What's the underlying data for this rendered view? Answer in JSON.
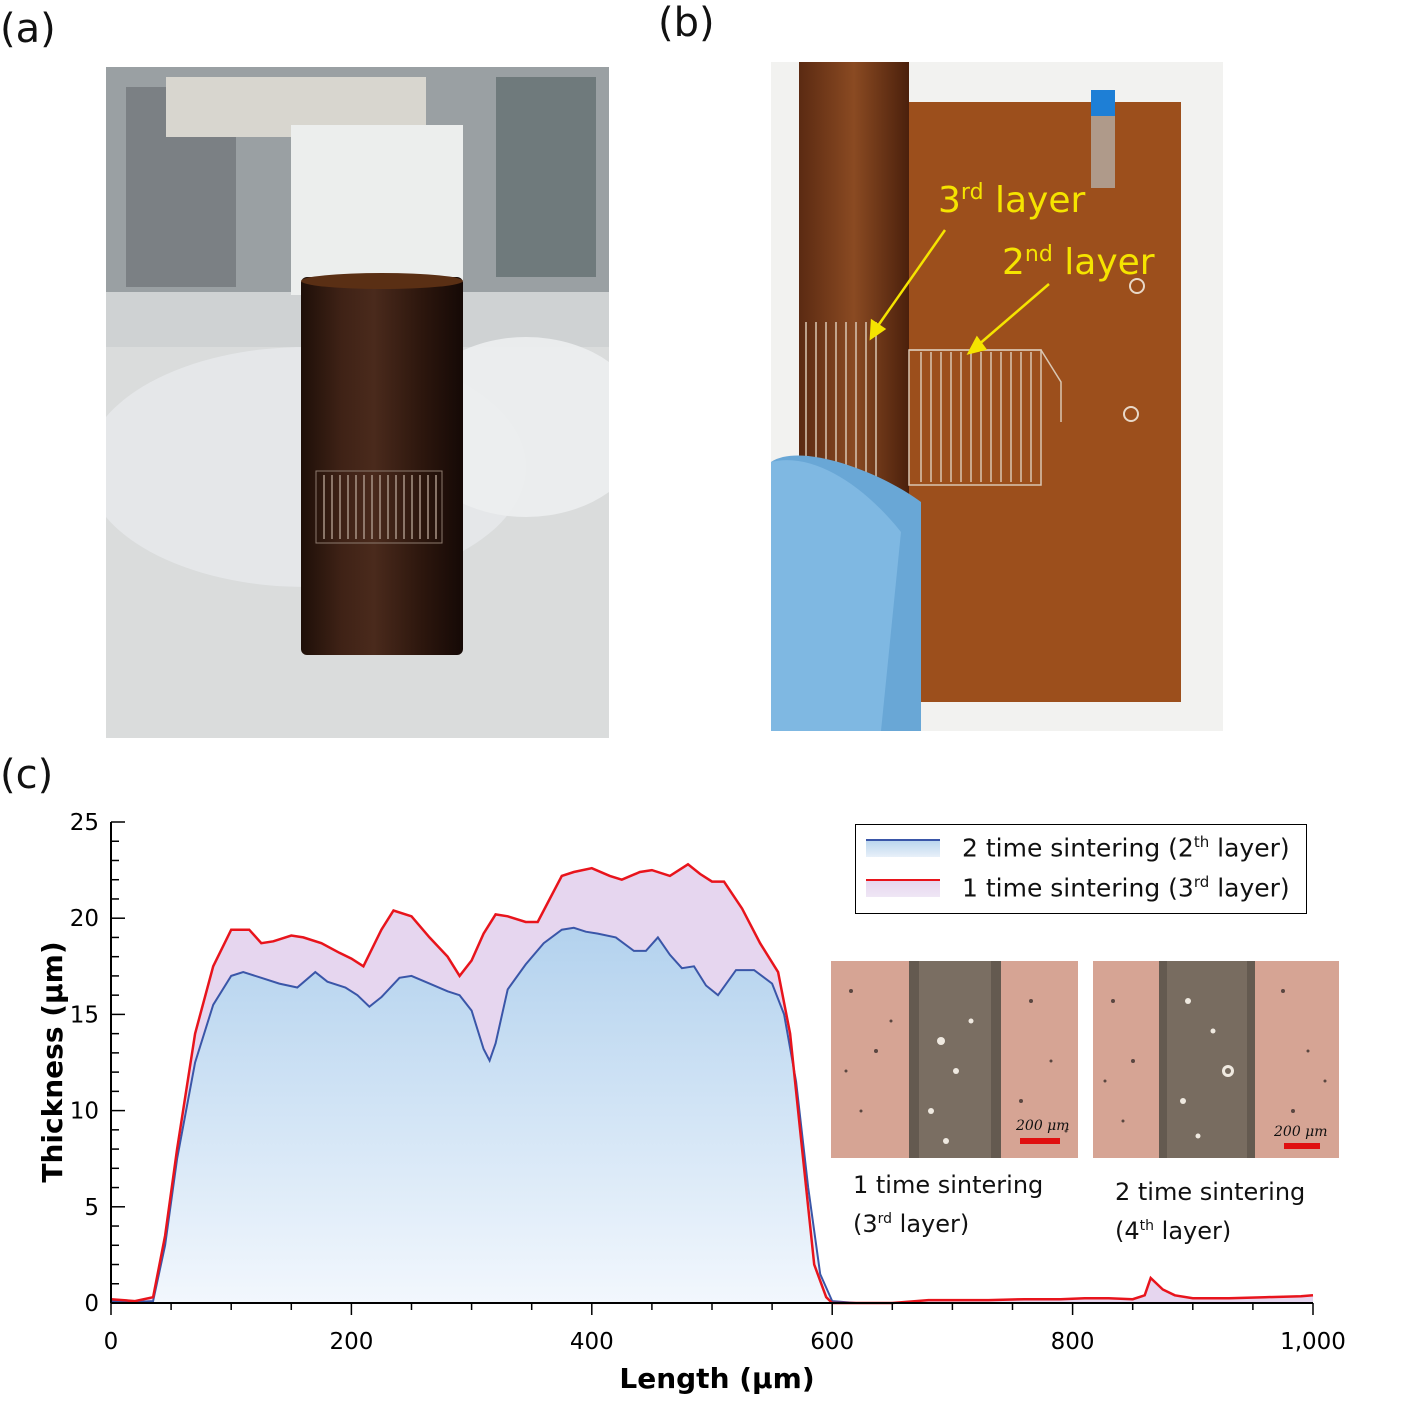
{
  "panels": {
    "a": {
      "label": "(a)"
    },
    "b": {
      "label": "(b)",
      "annotations": [
        {
          "pre": "3",
          "sup": "rd",
          "post": " layer"
        },
        {
          "pre": "2",
          "sup": "nd",
          "post": " layer"
        }
      ],
      "annotation_color": "#f5e400"
    },
    "c": {
      "label": "(c)"
    }
  },
  "legend": [
    {
      "pre": "2 time sintering (2",
      "sup": "th",
      "post": " layer)",
      "color": "#3a56a8",
      "fill": "#bcd6ee"
    },
    {
      "pre": "1 time sintering (3",
      "sup": "rd",
      "post": " layer)",
      "color": "#e8141c",
      "fill": "#e6d6ef"
    }
  ],
  "insets": [
    {
      "line1": "1 time sintering",
      "line2_pre": "(3",
      "line2_sup": "rd",
      "line2_post": " layer)",
      "scale": "200 μm"
    },
    {
      "line1": "2 time sintering",
      "line2_pre": "(4",
      "line2_sup": "th",
      "line2_post": " layer)",
      "scale": "200 μm"
    }
  ],
  "chart_data": {
    "type": "area",
    "xlabel": "Length (μm)",
    "ylabel": "Thickness (μm)",
    "xlim": [
      0,
      1000
    ],
    "ylim": [
      0,
      25
    ],
    "xticks": [
      0,
      200,
      400,
      600,
      800,
      1000
    ],
    "xtick_labels": [
      "0",
      "200",
      "400",
      "600",
      "800",
      "1,000"
    ],
    "yticks": [
      0,
      5,
      10,
      15,
      20,
      25
    ],
    "ytick_labels": [
      "0",
      "5",
      "10",
      "15",
      "20",
      "25"
    ],
    "grid": false,
    "legend_position": "top-right",
    "series": [
      {
        "name": "1 time sintering (3rd layer)",
        "x": [
          0,
          20,
          35,
          45,
          55,
          70,
          85,
          100,
          115,
          125,
          135,
          150,
          160,
          175,
          190,
          200,
          210,
          225,
          235,
          250,
          265,
          280,
          290,
          300,
          310,
          320,
          330,
          345,
          355,
          365,
          375,
          385,
          400,
          415,
          425,
          440,
          450,
          465,
          480,
          490,
          500,
          510,
          525,
          540,
          555,
          565,
          575,
          585,
          595,
          600,
          620,
          650,
          680,
          700,
          730,
          760,
          790,
          810,
          830,
          850,
          860,
          865,
          875,
          885,
          900,
          930,
          960,
          990,
          1000
        ],
        "y": [
          0.2,
          0.1,
          0.3,
          3.5,
          8,
          14,
          17.5,
          19.4,
          19.4,
          18.7,
          18.8,
          19.1,
          19.0,
          18.7,
          18.2,
          17.9,
          17.5,
          19.4,
          20.4,
          20.1,
          19.0,
          18.0,
          17.0,
          17.8,
          19.2,
          20.2,
          20.1,
          19.8,
          19.8,
          21.0,
          22.2,
          22.4,
          22.6,
          22.2,
          22.0,
          22.4,
          22.5,
          22.2,
          22.8,
          22.3,
          21.9,
          21.9,
          20.5,
          18.7,
          17.2,
          14.0,
          8.0,
          2.0,
          0.3,
          0.0,
          0.0,
          0.0,
          0.15,
          0.15,
          0.15,
          0.2,
          0.2,
          0.25,
          0.25,
          0.2,
          0.4,
          1.3,
          0.7,
          0.4,
          0.25,
          0.25,
          0.3,
          0.35,
          0.4
        ]
      },
      {
        "name": "2 time sintering (2th layer)",
        "x": [
          0,
          20,
          35,
          45,
          55,
          70,
          85,
          100,
          110,
          125,
          140,
          155,
          170,
          180,
          195,
          205,
          215,
          225,
          240,
          250,
          265,
          280,
          290,
          300,
          310,
          315,
          320,
          330,
          345,
          360,
          375,
          385,
          395,
          405,
          420,
          435,
          445,
          455,
          465,
          475,
          485,
          495,
          505,
          520,
          535,
          550,
          560,
          570,
          580,
          590,
          600,
          620,
          700,
          800,
          900,
          1000
        ],
        "y": [
          0.1,
          0.05,
          0.1,
          3.0,
          7.5,
          12.5,
          15.5,
          17.0,
          17.2,
          16.9,
          16.6,
          16.4,
          17.2,
          16.7,
          16.4,
          16.0,
          15.4,
          15.9,
          16.9,
          17.0,
          16.6,
          16.2,
          16.0,
          15.2,
          13.2,
          12.6,
          13.5,
          16.3,
          17.6,
          18.7,
          19.4,
          19.5,
          19.3,
          19.2,
          19.0,
          18.3,
          18.3,
          19.0,
          18.1,
          17.4,
          17.5,
          16.5,
          16.0,
          17.3,
          17.3,
          16.6,
          15.0,
          11.5,
          6.0,
          1.5,
          0.1,
          0.0,
          0.0,
          0.0,
          0.0,
          0.0
        ]
      }
    ]
  }
}
